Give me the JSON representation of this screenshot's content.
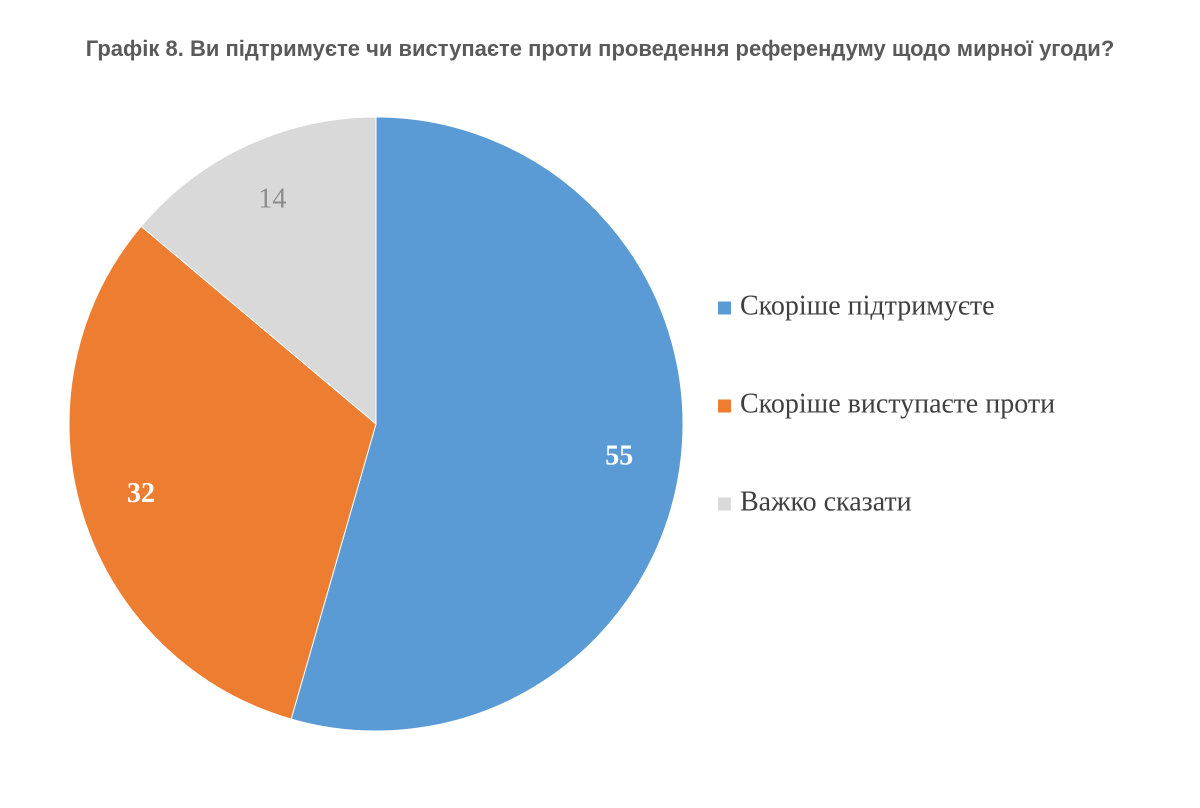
{
  "chart_data": {
    "type": "pie",
    "title": "Графік 8. Ви підтримуєте чи виступаєте проти проведення референдуму щодо мирної угоди?",
    "slices": [
      {
        "label": "Скоріше підтримуєте",
        "value": 55,
        "color": "#5b9bd5",
        "label_color": "#ffffff",
        "label_bold": true
      },
      {
        "label": "Скоріше виступаєте проти",
        "value": 32,
        "color": "#ed7d31",
        "label_color": "#ffffff",
        "label_bold": true
      },
      {
        "label": "Важко сказати",
        "value": 14,
        "color": "#d9d9d9",
        "label_color": "#8c8c8c",
        "label_bold": false
      }
    ],
    "start_angle": "12 o'clock",
    "direction": "clockwise",
    "legend": {
      "placement": "right"
    }
  }
}
